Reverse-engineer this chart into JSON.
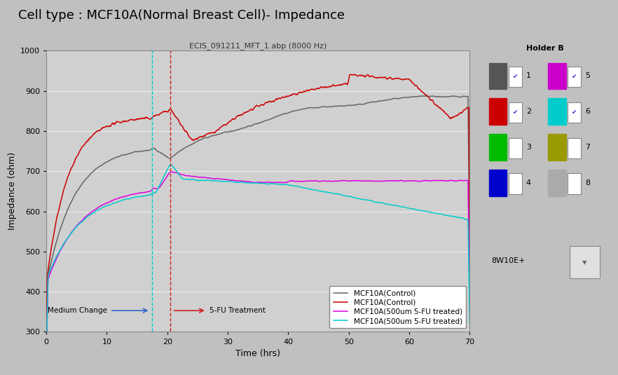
{
  "title": "Cell type : MCF10A(Normal Breast Cell)- Impedance",
  "subtitle": "ECIS_091211_MFT_1.abp (8000 Hz)",
  "xlabel": "Time (hrs)",
  "ylabel": "Impedance (ohm)",
  "xlim": [
    0,
    70
  ],
  "ylim": [
    300,
    1000
  ],
  "yticks": [
    300,
    400,
    500,
    600,
    700,
    800,
    900,
    1000
  ],
  "xticks": [
    0,
    10,
    20,
    30,
    40,
    50,
    60,
    70
  ],
  "medium_change_x": 17.5,
  "fu_treatment_x": 20.5,
  "legend_labels": [
    "MCF10A(Control)",
    "MCF10A(Control)",
    "MCF10A(500um 5-FU treated)",
    "MCF10A(500um 5-FU treated)"
  ],
  "line_colors": [
    "#666666",
    "#cc0000",
    "#dd00dd",
    "#00cccc"
  ],
  "fig_bg": "#c0c0c0",
  "plot_bg": "#d0d0d0",
  "holder_bg": "#e8e8e8",
  "holder_colors": [
    "#555555",
    "#cc0000",
    "#00bb00",
    "#0000cc",
    "#cc00cc",
    "#00cccc",
    "#999900",
    "#aaaaaa"
  ],
  "holder_checked": [
    true,
    true,
    false,
    false,
    true,
    true,
    false,
    false
  ],
  "holder_labels": [
    "1",
    "2",
    "3",
    "4",
    "5",
    "6",
    "7",
    "8"
  ]
}
